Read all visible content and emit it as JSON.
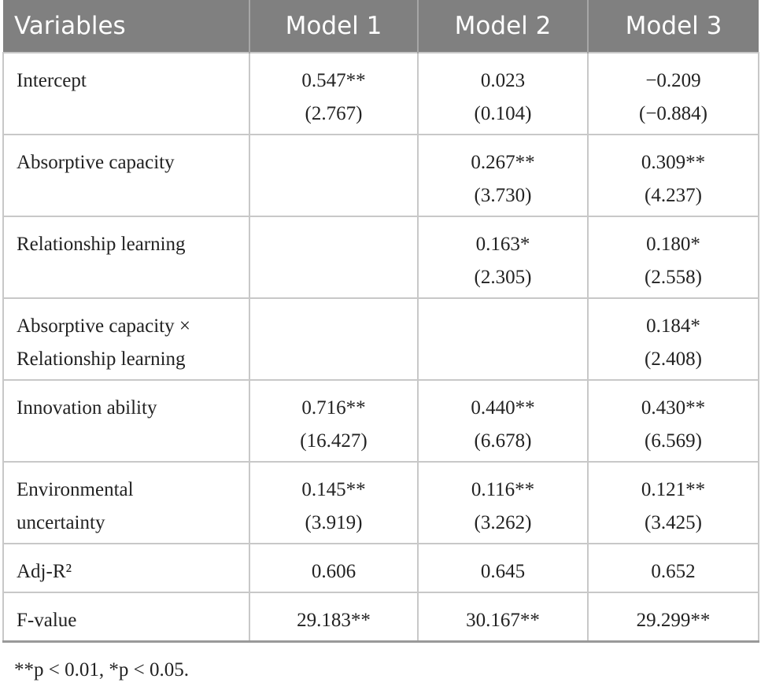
{
  "table": {
    "header": [
      "Variables",
      "Model 1",
      "Model 2",
      "Model 3"
    ],
    "rows": [
      {
        "variable": [
          "Intercept"
        ],
        "cells": [
          [
            "0.547**",
            "(2.767)"
          ],
          [
            "0.023",
            "(0.104)"
          ],
          [
            "−0.209",
            "(−0.884)"
          ]
        ]
      },
      {
        "variable": [
          "Absorptive capacity"
        ],
        "cells": [
          [],
          [
            "0.267**",
            "(3.730)"
          ],
          [
            "0.309**",
            "(4.237)"
          ]
        ]
      },
      {
        "variable": [
          "Relationship learning"
        ],
        "cells": [
          [],
          [
            "0.163*",
            "(2.305)"
          ],
          [
            "0.180*",
            "(2.558)"
          ]
        ]
      },
      {
        "variable": [
          "Absorptive capacity ×",
          "Relationship learning"
        ],
        "cells": [
          [],
          [],
          [
            "0.184*",
            "(2.408)"
          ]
        ]
      },
      {
        "variable": [
          "Innovation ability"
        ],
        "cells": [
          [
            "0.716**",
            "(16.427)"
          ],
          [
            "0.440**",
            "(6.678)"
          ],
          [
            "0.430**",
            "(6.569)"
          ]
        ]
      },
      {
        "variable": [
          "Environmental",
          "uncertainty"
        ],
        "cells": [
          [
            "0.145**",
            "(3.919)"
          ],
          [
            "0.116**",
            "(3.262)"
          ],
          [
            "0.121**",
            "(3.425)"
          ]
        ]
      },
      {
        "variable": [
          "Adj-R²"
        ],
        "cells": [
          [
            "0.606"
          ],
          [
            "0.645"
          ],
          [
            "0.652"
          ]
        ]
      },
      {
        "variable": [
          "F-value"
        ],
        "cells": [
          [
            "29.183**"
          ],
          [
            "30.167**"
          ],
          [
            "29.299**"
          ]
        ]
      }
    ]
  },
  "footnote": "**p < 0.01, *p < 0.05."
}
